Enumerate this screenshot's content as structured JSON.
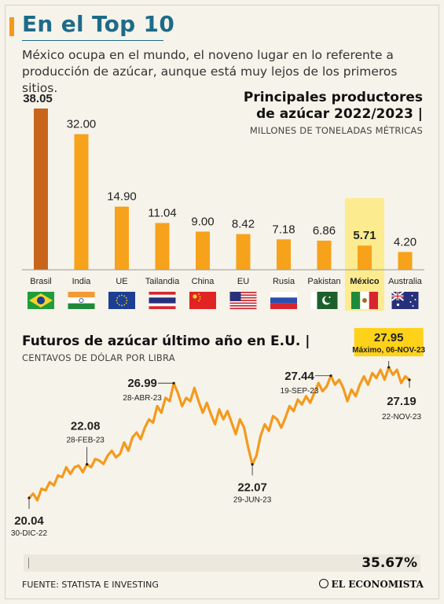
{
  "header": {
    "title": "En el Top 10",
    "subtitle": "México ocupa en el mundo, el noveno lugar en lo referente a producción de azúcar, aunque está muy lejos de los primeros sitios."
  },
  "bar_section": {
    "title_line1": "Principales productores",
    "title_line2": "de azúcar 2022/2023 |",
    "unit": "MILLONES DE TONELADAS MÉTRICAS"
  },
  "line_section": {
    "title": "Futuros de azúcar último año en E.U. |",
    "unit": "CENTAVOS DE DÓLAR POR LIBRA",
    "change_pct": "35.67%"
  },
  "footer": {
    "source": "FUENTE: STATISTA E INVESTING",
    "brand": "EL ECONOMISTA"
  },
  "colors": {
    "bar": "#f7a21b",
    "bar_top": "#c8651b",
    "highlight": "#fdeb8f",
    "line": "#f39a1c",
    "title": "#1d6b8a"
  },
  "chart_data": [
    {
      "type": "bar",
      "categories": [
        "Brasil",
        "India",
        "UE",
        "Tailandia",
        "China",
        "EU",
        "Rusia",
        "Pakistan",
        "México",
        "Australia"
      ],
      "values": [
        38.05,
        32.0,
        14.9,
        11.04,
        9.0,
        8.42,
        7.18,
        6.86,
        5.71,
        4.2
      ],
      "labels": [
        "38.05",
        "32.00",
        "14.90",
        "11.04",
        "9.00",
        "8.42",
        "7.18",
        "6.86",
        "5.71",
        "4.20"
      ],
      "flags": [
        "brazil-flag",
        "india-flag",
        "eu-flag",
        "thailand-flag",
        "china-flag",
        "usa-flag",
        "russia-flag",
        "pakistan-flag",
        "mexico-flag",
        "australia-flag"
      ],
      "highlight_index": 8,
      "ylim": [
        0,
        40
      ]
    },
    {
      "type": "line",
      "ylim": [
        19,
        29
      ],
      "series": [
        {
          "values": [
            20.04,
            20.3,
            19.9,
            20.6,
            20.5,
            21.0,
            20.8,
            21.4,
            21.3,
            21.9,
            21.5,
            21.9,
            22.0,
            21.6,
            22.08,
            21.9,
            22.4,
            22.3,
            22.1,
            22.6,
            22.9,
            22.5,
            22.7,
            23.4,
            22.9,
            23.7,
            24.0,
            23.6,
            24.3,
            24.8,
            24.6,
            25.6,
            25.2,
            26.1,
            25.9,
            26.99,
            26.4,
            25.6,
            26.1,
            25.9,
            26.7,
            25.9,
            25.2,
            25.8,
            25.1,
            24.5,
            25.4,
            24.8,
            25.3,
            24.6,
            23.9,
            24.8,
            24.3,
            23.1,
            22.07,
            22.6,
            23.8,
            24.5,
            24.1,
            25.0,
            24.8,
            24.3,
            24.9,
            25.6,
            25.3,
            26.0,
            25.7,
            26.2,
            25.8,
            26.4,
            27.0,
            26.5,
            26.8,
            27.44,
            26.9,
            27.2,
            26.7,
            25.9,
            26.6,
            26.2,
            26.9,
            27.4,
            26.9,
            27.6,
            27.3,
            27.8,
            27.2,
            27.95,
            27.5,
            27.8,
            27.0,
            27.4,
            27.19
          ]
        }
      ],
      "annotations": [
        {
          "index": 0,
          "value": "20.04",
          "date": "30-DIC-22",
          "pos": "below"
        },
        {
          "index": 14,
          "value": "22.08",
          "date": "28-FEB-23",
          "pos": "above"
        },
        {
          "index": 35,
          "value": "26.99",
          "date": "28-ABR-23",
          "pos": "left"
        },
        {
          "index": 54,
          "value": "22.07",
          "date": "29-JUN-23",
          "pos": "below"
        },
        {
          "index": 73,
          "value": "27.44",
          "date": "19-SEP-23",
          "pos": "left"
        },
        {
          "index": 87,
          "value": "27.95",
          "date": "Máximo, 06-NOV-23",
          "pos": "box"
        },
        {
          "index": 92,
          "value": "27.19",
          "date": "22-NOV-23",
          "pos": "below-right"
        }
      ]
    }
  ]
}
